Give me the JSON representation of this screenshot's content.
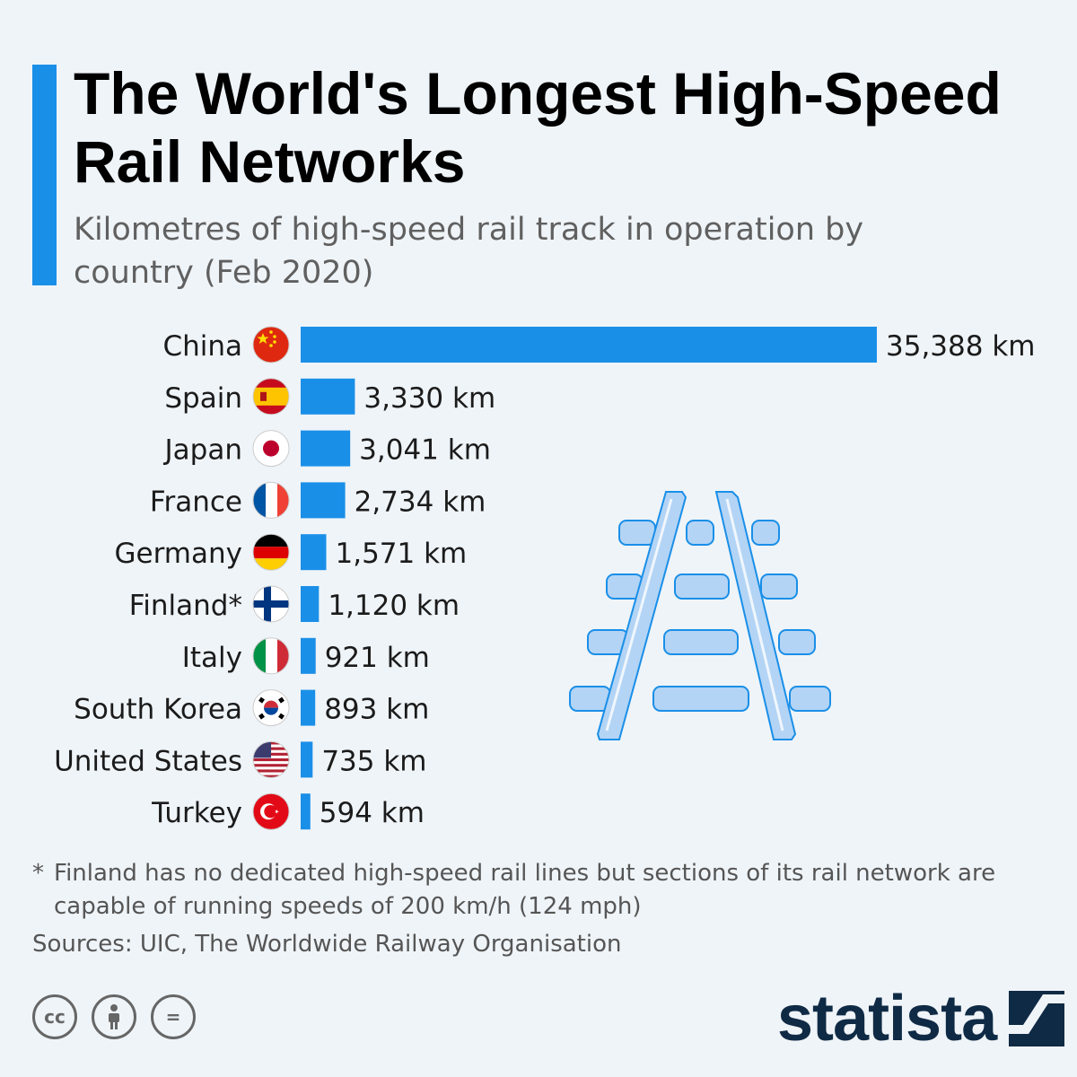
{
  "title": "The World's Longest High-Speed Rail Networks",
  "subtitle": "Kilometres of high-speed rail track in operation by country (Feb 2020)",
  "chart_data": {
    "type": "bar",
    "orientation": "horizontal",
    "categories": [
      "China",
      "Spain",
      "Japan",
      "France",
      "Germany",
      "Finland*",
      "Italy",
      "South Korea",
      "United States",
      "Turkey"
    ],
    "values": [
      35388,
      3330,
      3041,
      2734,
      1571,
      1120,
      921,
      893,
      735,
      594
    ],
    "value_labels": [
      "35,388 km",
      "3,330 km",
      "3,041 km",
      "2,734 km",
      "1,571 km",
      "1,120 km",
      "921 km",
      "893 km",
      "735 km",
      "594 km"
    ],
    "flags": [
      "china-flag-icon",
      "spain-flag-icon",
      "japan-flag-icon",
      "france-flag-icon",
      "germany-flag-icon",
      "finland-flag-icon",
      "italy-flag-icon",
      "south-korea-flag-icon",
      "united-states-flag-icon",
      "turkey-flag-icon"
    ],
    "unit": "km",
    "bar_color": "#1a8fe8",
    "grid": false,
    "legend": "none"
  },
  "footnote": {
    "marker": "*",
    "text": "Finland has no dedicated high-speed rail lines but sections of its rail network are capable of running speeds of 200 km/h (124 mph)"
  },
  "sources": "Sources: UIC, The Worldwide Railway Organisation",
  "license_icons": [
    "cc-icon",
    "attribution-icon",
    "no-derivatives-icon"
  ],
  "license_glyphs": [
    "cc",
    "=",
    ""
  ],
  "brand": "statista",
  "colors": {
    "accent": "#1a8fe8",
    "background": "#eff4f8",
    "brand": "#0f2a45",
    "rail_fill": "#b3d4f5",
    "rail_stroke": "#1a8fe8"
  }
}
